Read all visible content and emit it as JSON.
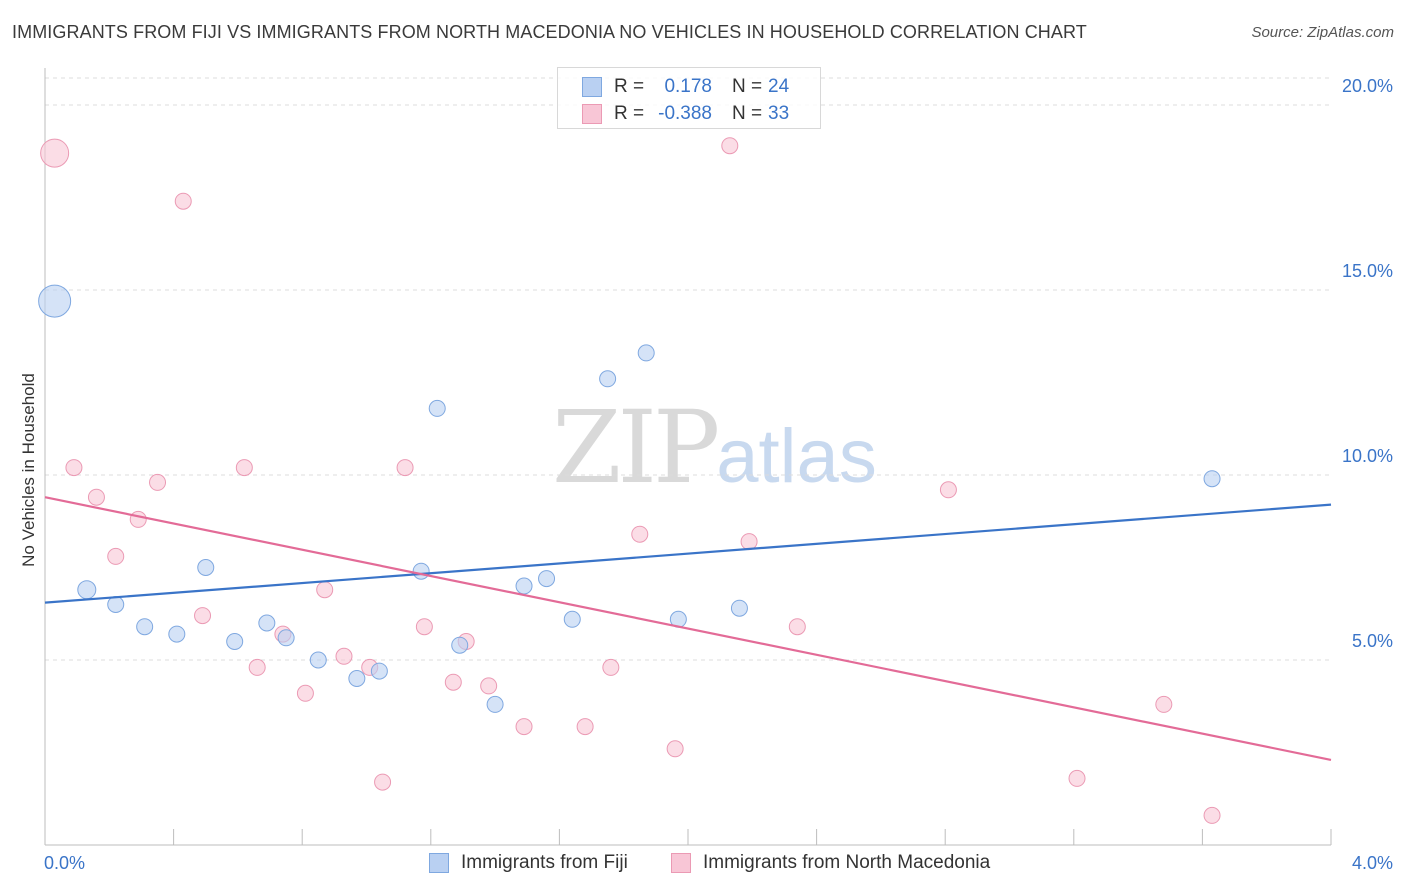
{
  "title": "IMMIGRANTS FROM FIJI VS IMMIGRANTS FROM NORTH MACEDONIA NO VEHICLES IN HOUSEHOLD CORRELATION CHART",
  "source": "Source: ZipAtlas.com",
  "watermark": {
    "zip": "ZIP",
    "atlas": "atlas"
  },
  "colors": {
    "fiji_fill": "#b9d0f2",
    "fiji_stroke": "#7fa8e0",
    "fiji_line": "#3a74c8",
    "macedonia_fill": "#f8c6d6",
    "macedonia_stroke": "#eb9ab4",
    "macedonia_line": "#e36b97",
    "axis_value_text": "#3a74c8",
    "grid": "#dcdcdc"
  },
  "legend": {
    "rows": [
      {
        "r_label": "R =",
        "r_value": "0.178",
        "n_label": "N =",
        "n_value": "24"
      },
      {
        "r_label": "R =",
        "r_value": "-0.388",
        "n_label": "N =",
        "n_value": "33"
      }
    ]
  },
  "bottom_legend": {
    "fiji": "Immigrants from Fiji",
    "macedonia": "Immigrants from North Macedonia"
  },
  "chart_data": {
    "type": "scatter",
    "title": "IMMIGRANTS FROM FIJI VS IMMIGRANTS FROM NORTH MACEDONIA NO VEHICLES IN HOUSEHOLD CORRELATION CHART",
    "xlabel": "",
    "ylabel": "No Vehicles in Household",
    "xlim": [
      0,
      4
    ],
    "ylim": [
      0,
      21
    ],
    "x_tick_labels": {
      "min": "0.0%",
      "max": "4.0%"
    },
    "y_ticks": [
      {
        "value": 5,
        "label": "5.0%"
      },
      {
        "value": 10,
        "label": "10.0%"
      },
      {
        "value": 15,
        "label": "15.0%"
      },
      {
        "value": 20,
        "label": "20.0%"
      }
    ],
    "grid": true,
    "legend_position": "top-center",
    "series": [
      {
        "name": "Immigrants from Fiji",
        "r": 0.178,
        "n": 24,
        "trend": {
          "x": [
            0,
            4
          ],
          "y": [
            6.55,
            9.2
          ]
        },
        "points": [
          {
            "x": 0.03,
            "y": 14.7,
            "size": 16
          },
          {
            "x": 0.13,
            "y": 6.9,
            "size": 9
          },
          {
            "x": 0.22,
            "y": 6.5,
            "size": 8
          },
          {
            "x": 0.31,
            "y": 5.9,
            "size": 8
          },
          {
            "x": 0.41,
            "y": 5.7,
            "size": 8
          },
          {
            "x": 0.5,
            "y": 7.5,
            "size": 8
          },
          {
            "x": 0.59,
            "y": 5.5,
            "size": 8
          },
          {
            "x": 0.69,
            "y": 6.0,
            "size": 8
          },
          {
            "x": 0.75,
            "y": 5.6,
            "size": 8
          },
          {
            "x": 0.85,
            "y": 5.0,
            "size": 8
          },
          {
            "x": 0.97,
            "y": 4.5,
            "size": 8
          },
          {
            "x": 1.04,
            "y": 4.7,
            "size": 8
          },
          {
            "x": 1.17,
            "y": 7.4,
            "size": 8
          },
          {
            "x": 1.22,
            "y": 11.8,
            "size": 8
          },
          {
            "x": 1.29,
            "y": 5.4,
            "size": 8
          },
          {
            "x": 1.4,
            "y": 3.8,
            "size": 8
          },
          {
            "x": 1.49,
            "y": 7.0,
            "size": 8
          },
          {
            "x": 1.56,
            "y": 7.2,
            "size": 8
          },
          {
            "x": 1.64,
            "y": 6.1,
            "size": 8
          },
          {
            "x": 1.75,
            "y": 12.6,
            "size": 8
          },
          {
            "x": 1.87,
            "y": 13.3,
            "size": 8
          },
          {
            "x": 1.97,
            "y": 6.1,
            "size": 8
          },
          {
            "x": 2.16,
            "y": 6.4,
            "size": 8
          },
          {
            "x": 3.63,
            "y": 9.9,
            "size": 8
          }
        ]
      },
      {
        "name": "Immigrants from North Macedonia",
        "r": -0.388,
        "n": 33,
        "trend": {
          "x": [
            0,
            4
          ],
          "y": [
            9.4,
            2.3
          ]
        },
        "points": [
          {
            "x": 0.03,
            "y": 18.7,
            "size": 14
          },
          {
            "x": 0.09,
            "y": 10.2,
            "size": 8
          },
          {
            "x": 0.16,
            "y": 9.4,
            "size": 8
          },
          {
            "x": 0.22,
            "y": 7.8,
            "size": 8
          },
          {
            "x": 0.29,
            "y": 8.8,
            "size": 8
          },
          {
            "x": 0.35,
            "y": 9.8,
            "size": 8
          },
          {
            "x": 0.43,
            "y": 17.4,
            "size": 8
          },
          {
            "x": 0.49,
            "y": 6.2,
            "size": 8
          },
          {
            "x": 0.62,
            "y": 10.2,
            "size": 8
          },
          {
            "x": 0.66,
            "y": 4.8,
            "size": 8
          },
          {
            "x": 0.74,
            "y": 5.7,
            "size": 8
          },
          {
            "x": 0.81,
            "y": 4.1,
            "size": 8
          },
          {
            "x": 0.87,
            "y": 6.9,
            "size": 8
          },
          {
            "x": 0.93,
            "y": 5.1,
            "size": 8
          },
          {
            "x": 1.01,
            "y": 4.8,
            "size": 8
          },
          {
            "x": 1.05,
            "y": 1.7,
            "size": 8
          },
          {
            "x": 1.12,
            "y": 10.2,
            "size": 8
          },
          {
            "x": 1.18,
            "y": 5.9,
            "size": 8
          },
          {
            "x": 1.27,
            "y": 4.4,
            "size": 8
          },
          {
            "x": 1.31,
            "y": 5.5,
            "size": 8
          },
          {
            "x": 1.38,
            "y": 4.3,
            "size": 8
          },
          {
            "x": 1.49,
            "y": 3.2,
            "size": 8
          },
          {
            "x": 1.68,
            "y": 3.2,
            "size": 8
          },
          {
            "x": 1.76,
            "y": 4.8,
            "size": 8
          },
          {
            "x": 1.85,
            "y": 8.4,
            "size": 8
          },
          {
            "x": 1.96,
            "y": 2.6,
            "size": 8
          },
          {
            "x": 2.13,
            "y": 18.9,
            "size": 8
          },
          {
            "x": 2.19,
            "y": 8.2,
            "size": 8
          },
          {
            "x": 2.34,
            "y": 5.9,
            "size": 8
          },
          {
            "x": 2.81,
            "y": 9.6,
            "size": 8
          },
          {
            "x": 3.21,
            "y": 1.8,
            "size": 8
          },
          {
            "x": 3.48,
            "y": 3.8,
            "size": 8
          },
          {
            "x": 3.63,
            "y": 0.8,
            "size": 8
          }
        ]
      }
    ]
  }
}
